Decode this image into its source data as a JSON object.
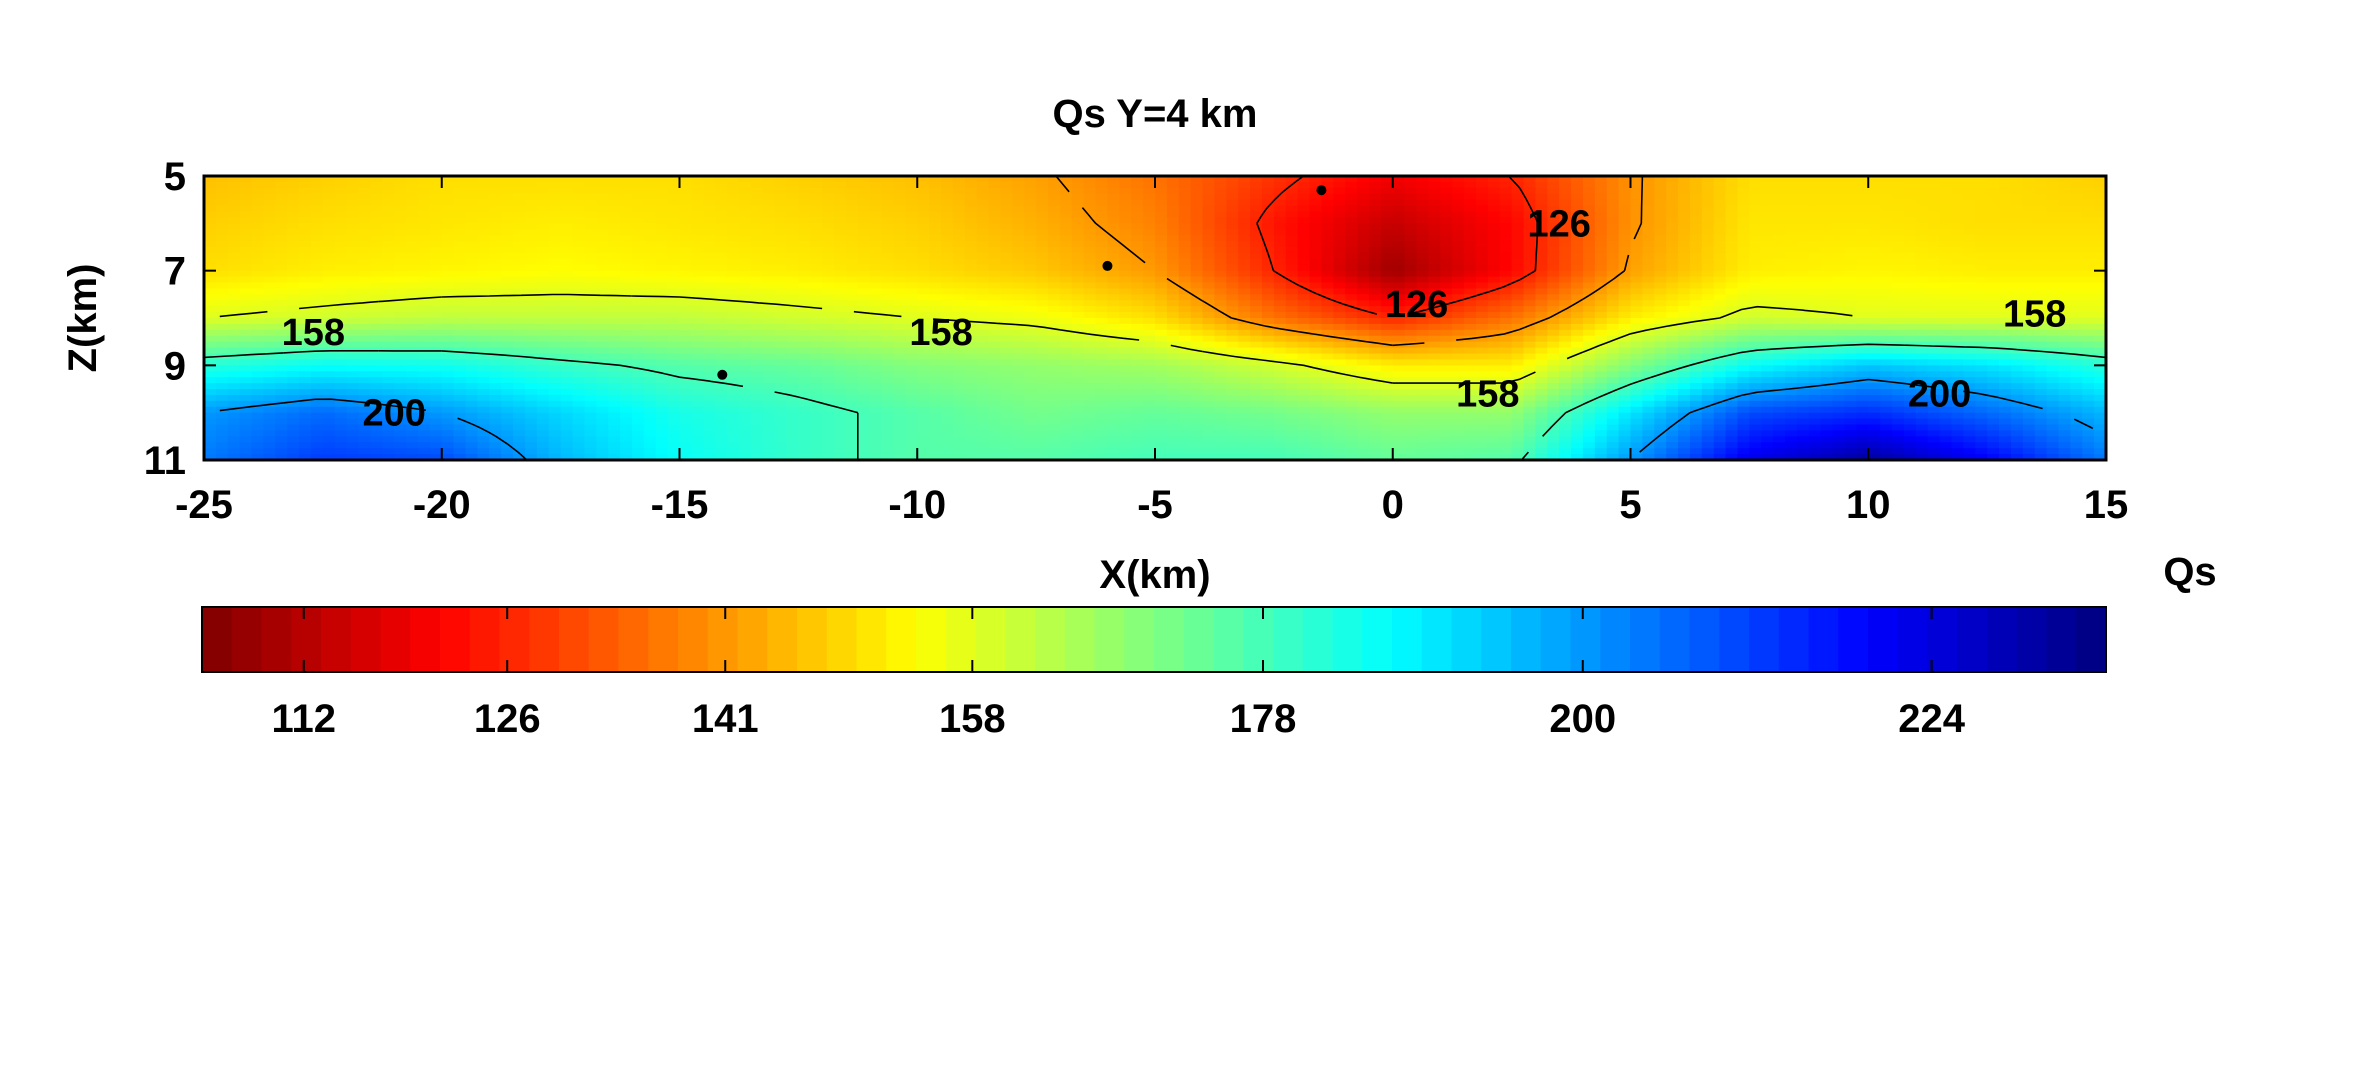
{
  "chart_data": {
    "type": "heatmap",
    "title": "Qs Y=4 km",
    "xlabel": "X(km)",
    "ylabel": "Z(km)",
    "xlim": [
      -25,
      15
    ],
    "ylim": [
      5,
      11
    ],
    "y_reversed": true,
    "x_ticks": [
      "-25",
      "-20",
      "-15",
      "-10",
      "-5",
      "0",
      "5",
      "10",
      "15"
    ],
    "y_ticks": [
      "5",
      "7",
      "9",
      "11"
    ],
    "colormap": "jet (reversed: red = low Qs, blue = high Qs)",
    "colorbar": {
      "label": "Qs",
      "orientation": "horizontal",
      "placement": "below plot",
      "range": [
        105,
        236
      ],
      "ticks": [
        "112",
        "126",
        "141",
        "158",
        "178",
        "200",
        "224"
      ]
    },
    "contour_levels": [
      126,
      141,
      158,
      178,
      200
    ],
    "contour_labels": [
      {
        "text": "158",
        "x": -22.7,
        "z": 8.3
      },
      {
        "text": "158",
        "x": -9.5,
        "z": 8.3
      },
      {
        "text": "158",
        "x": 2.0,
        "z": 9.6
      },
      {
        "text": "158",
        "x": 13.5,
        "z": 7.9
      },
      {
        "text": "126",
        "x": 0.5,
        "z": 7.7
      },
      {
        "text": "126",
        "x": 3.5,
        "z": 6.0
      },
      {
        "text": "200",
        "x": -21.0,
        "z": 10.0
      },
      {
        "text": "200",
        "x": 11.5,
        "z": 9.6
      }
    ],
    "grid_nodes": {
      "x": [
        -25,
        -22.5,
        -20,
        -17.5,
        -15,
        -12.5,
        -10,
        -7.5,
        -5,
        -2.5,
        0,
        2.5,
        5,
        7.5,
        10,
        12.5,
        15
      ],
      "z": [
        5,
        6,
        7,
        8,
        9,
        10,
        11
      ],
      "qs": [
        [
          146,
          148,
          150,
          150,
          150,
          148,
          146,
          142,
          136,
          128,
          120,
          126,
          140,
          150,
          150,
          150,
          148
        ],
        [
          148,
          150,
          151,
          152,
          151,
          150,
          148,
          144,
          138,
          124,
          114,
          122,
          140,
          151,
          151,
          150,
          150
        ],
        [
          150,
          152,
          153,
          154,
          153,
          152,
          150,
          147,
          141,
          126,
          109,
          122,
          142,
          152,
          153,
          152,
          152
        ],
        [
          158,
          160,
          162,
          162,
          162,
          160,
          158,
          156,
          150,
          136,
          126,
          136,
          152,
          160,
          158,
          158,
          158
        ],
        [
          182,
          186,
          185,
          180,
          176,
          174,
          170,
          168,
          166,
          160,
          152,
          152,
          170,
          186,
          194,
          190,
          182
        ],
        [
          200,
          206,
          200,
          192,
          184,
          180,
          176,
          172,
          174,
          172,
          168,
          168,
          190,
          210,
          214,
          206,
          196
        ],
        [
          204,
          212,
          210,
          196,
          186,
          180,
          176,
          176,
          178,
          178,
          174,
          176,
          200,
          222,
          232,
          220,
          204
        ]
      ]
    },
    "markers": [
      {
        "x": -14.1,
        "z": 9.2
      },
      {
        "x": -6.0,
        "z": 6.9
      },
      {
        "x": -1.5,
        "z": 5.3
      }
    ]
  }
}
